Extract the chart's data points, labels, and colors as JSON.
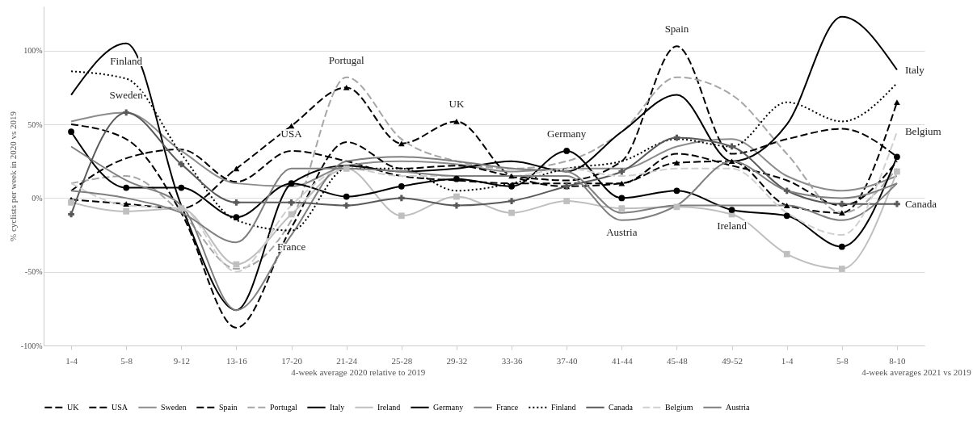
{
  "chart_data": {
    "type": "line",
    "ylabel": "% cyclists per week in 2020 vs 2019",
    "categories": [
      "1-4",
      "5-8",
      "9-12",
      "13-16",
      "17-20",
      "21-24",
      "25-28",
      "29-32",
      "33-36",
      "37-40",
      "41-44",
      "45-48",
      "49-52",
      "1-4",
      "5-8",
      "8-10"
    ],
    "ylim": [
      -100,
      130
    ],
    "yticks": [
      {
        "value": -100,
        "label": "-100%"
      },
      {
        "value": -50,
        "label": "-50%"
      },
      {
        "value": 0,
        "label": "0%"
      },
      {
        "value": 50,
        "label": "50%"
      },
      {
        "value": 100,
        "label": "100%"
      }
    ],
    "grid": "y",
    "legend": "bottom",
    "series": [
      {
        "name": "UK",
        "color": "#000000",
        "line_style": "dashed",
        "marker": "triangle",
        "values": [
          -1,
          -4,
          -7,
          20,
          49,
          75,
          37,
          52,
          15,
          8,
          10,
          24,
          25,
          -5,
          -10,
          65
        ]
      },
      {
        "name": "USA",
        "color": "#000000",
        "line_style": "dashed",
        "values": [
          5,
          27,
          33,
          11,
          32,
          25,
          15,
          12,
          10,
          10,
          10,
          30,
          22,
          12,
          -5,
          25
        ]
      },
      {
        "name": "Sweden",
        "color": "#8c8c8c",
        "line_style": "solid",
        "values": [
          52,
          58,
          32,
          10,
          8,
          22,
          25,
          23,
          18,
          20,
          20,
          35,
          40,
          15,
          5,
          15
        ]
      },
      {
        "name": "Spain",
        "color": "#000000",
        "line_style": "dashed",
        "values": [
          50,
          40,
          -10,
          -88,
          -20,
          38,
          20,
          22,
          15,
          12,
          25,
          103,
          30,
          40,
          47,
          28
        ]
      },
      {
        "name": "Portugal",
        "color": "#a6a6a6",
        "line_style": "dashed",
        "values": [
          10,
          15,
          -10,
          -48,
          -15,
          82,
          40,
          25,
          20,
          25,
          45,
          82,
          70,
          30,
          -10,
          20
        ]
      },
      {
        "name": "Italy",
        "color": "#000000",
        "line_style": "solid",
        "values": [
          70,
          105,
          -5,
          -76,
          10,
          22,
          18,
          20,
          25,
          18,
          45,
          70,
          25,
          50,
          123,
          87
        ]
      },
      {
        "name": "Ireland",
        "color": "#bfbfbf",
        "line_style": "solid",
        "marker": "square",
        "values": [
          -3,
          -9,
          -7,
          -45,
          -11,
          20,
          -12,
          1,
          -10,
          -2,
          -7,
          -6,
          -11,
          -38,
          -48,
          18
        ]
      },
      {
        "name": "Germany",
        "color": "#000000",
        "line_style": "solid",
        "marker": "circle",
        "values": [
          45,
          7,
          7,
          -13,
          10,
          1,
          8,
          13,
          8,
          32,
          0,
          5,
          -8,
          -12,
          -33,
          28
        ]
      },
      {
        "name": "France",
        "color": "#7f7f7f",
        "line_style": "solid",
        "values": [
          35,
          12,
          -5,
          -76,
          -25,
          25,
          28,
          25,
          20,
          18,
          -10,
          -5,
          -5,
          -5,
          -15,
          10
        ]
      },
      {
        "name": "Finland",
        "color": "#000000",
        "line_style": "dotted",
        "values": [
          86,
          81,
          30,
          -15,
          -22,
          20,
          20,
          5,
          10,
          20,
          25,
          40,
          35,
          65,
          52,
          78
        ]
      },
      {
        "name": "Canada",
        "color": "#595959",
        "line_style": "solid",
        "marker": "cross",
        "values": [
          -11,
          58,
          23,
          -3,
          -3,
          -5,
          0,
          -5,
          -2,
          8,
          18,
          41,
          35,
          5,
          -4,
          -4
        ]
      },
      {
        "name": "Belgium",
        "color": "#d0d0d0",
        "line_style": "dashed",
        "values": [
          10,
          -5,
          -7,
          -50,
          -5,
          20,
          15,
          15,
          15,
          20,
          15,
          20,
          20,
          -10,
          -25,
          45
        ]
      },
      {
        "name": "Austria",
        "color": "#7f7f7f",
        "line_style": "solid",
        "values": [
          5,
          0,
          -10,
          -30,
          20,
          20,
          18,
          15,
          15,
          15,
          -15,
          -5,
          25,
          5,
          0,
          10
        ]
      }
    ],
    "annotations": [
      {
        "text": "Sweden",
        "x": "5-8",
        "y": 58
      },
      {
        "text": "Finland",
        "x": "5-8",
        "y": 81
      },
      {
        "text": "USA",
        "x": "17-20",
        "y": 32
      },
      {
        "text": "Portugal",
        "x": "21-24",
        "y": 82
      },
      {
        "text": "UK",
        "x": "29-32",
        "y": 52
      },
      {
        "text": "Germany",
        "x": "37-40",
        "y": 32
      },
      {
        "text": "France",
        "x": "17-20",
        "y": -25
      },
      {
        "text": "Austria",
        "x": "41-44",
        "y": -15
      },
      {
        "text": "Spain",
        "x": "45-48",
        "y": 103
      },
      {
        "text": "Italy",
        "x": "8-10",
        "y": 87
      },
      {
        "text": "Belgium",
        "x": "8-10",
        "y": 45
      },
      {
        "text": "Canada",
        "x": "8-10",
        "y": -4
      },
      {
        "text": "Ireland",
        "x": "49-52",
        "y": -11
      },
      "4-week average 2020 relative to 2019",
      "4-week averages 2021 vs 2019"
    ]
  }
}
